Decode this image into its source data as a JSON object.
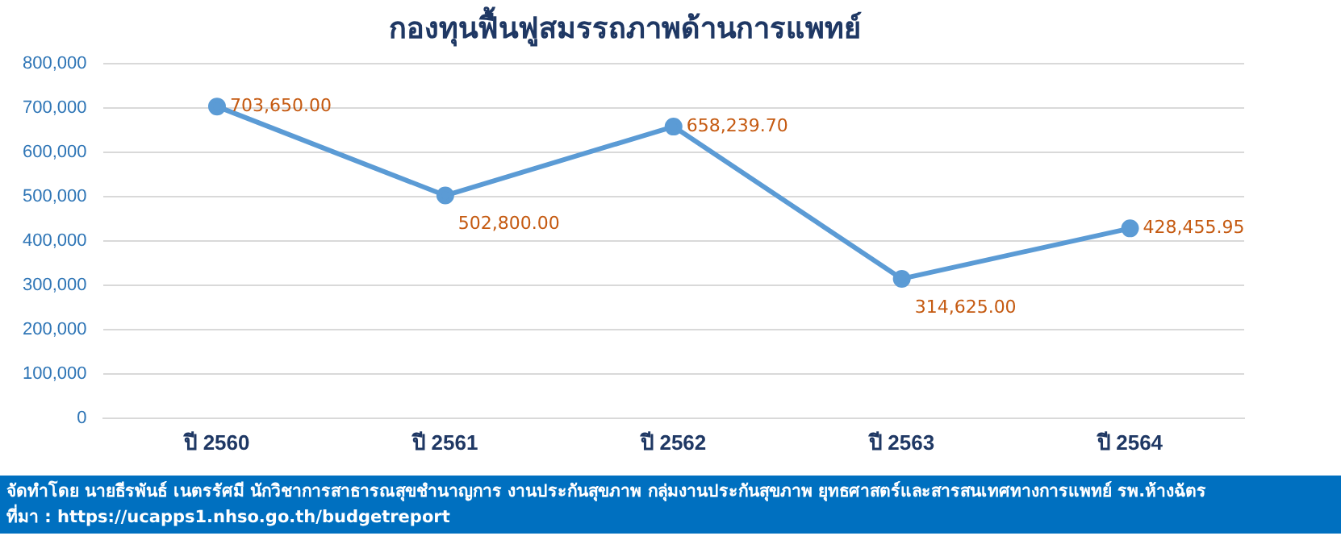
{
  "chart_data": {
    "type": "line",
    "title": "กองทุนฟื้นฟูสมรรถภาพด้านการแพทย์",
    "categories": [
      "ปี 2560",
      "ปี 2561",
      "ปี 2562",
      "ปี 2563",
      "ปี 2564"
    ],
    "series": [
      {
        "color": "#5b9bd5",
        "values": [
          703650,
          502800,
          658239.7,
          314625,
          428455.95
        ],
        "value_labels": [
          "703,650.00",
          "502,800.00",
          "658,239.70",
          "314,625.00",
          "428,455.95"
        ]
      }
    ],
    "ylim": [
      0,
      800000
    ],
    "yticks": [
      {
        "value": 0,
        "label": "0"
      },
      {
        "value": 100000,
        "label": "100,000"
      },
      {
        "value": 200000,
        "label": "200,000"
      },
      {
        "value": 300000,
        "label": "300,000"
      },
      {
        "value": 400000,
        "label": "400,000"
      },
      {
        "value": 500000,
        "label": "500,000"
      },
      {
        "value": 600000,
        "label": "600,000"
      },
      {
        "value": 700000,
        "label": "700,000"
      },
      {
        "value": 800000,
        "label": "800,000"
      }
    ],
    "grid": "y",
    "legend": false,
    "marker": "circle",
    "line_style": "solid",
    "annotations": [
      "จัดทำโดย นายธีรพันธ์ เนตรรัศมี นักวิชาการสาธารณสุขชำนาญการ งานประกันสุขภาพ กลุ่มงานประกันสุขภาพ ยุทธศาสตร์และสารสนเทศทางการแพทย์ รพ.ห้างฉัตร",
      "ที่มา : https://ucapps1.nhso.go.th/budgetreport"
    ]
  }
}
